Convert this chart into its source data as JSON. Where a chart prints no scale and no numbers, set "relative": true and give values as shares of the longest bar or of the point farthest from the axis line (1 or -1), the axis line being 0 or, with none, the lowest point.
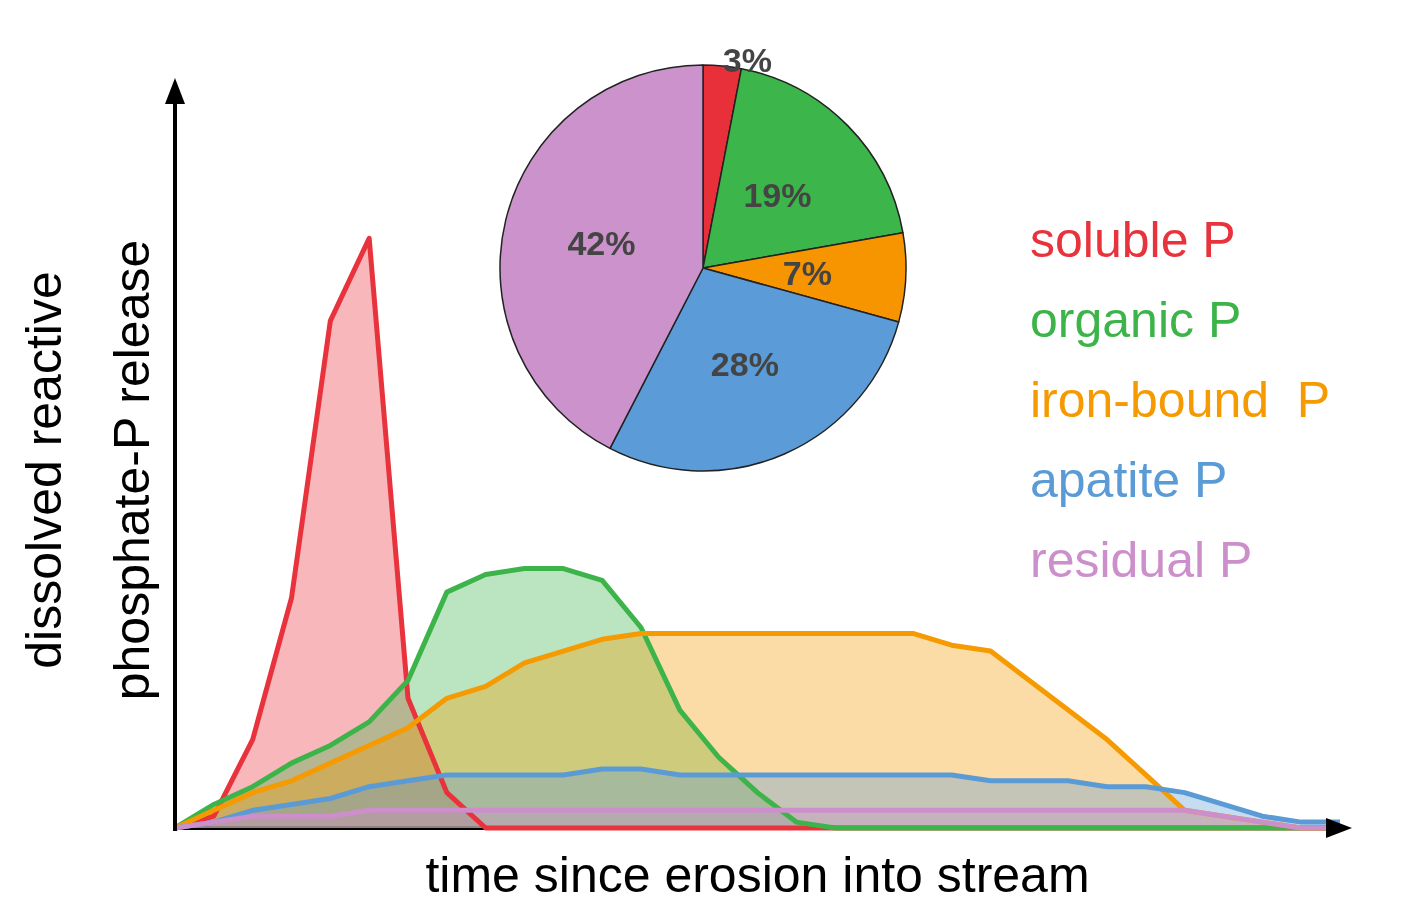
{
  "chart_data": [
    {
      "type": "area",
      "relative": true,
      "xlabel": "time since erosion into stream",
      "ylabel": "dissolved reactive\nphosphate-P release",
      "legend": "right",
      "grid": false,
      "categories": [
        null,
        null,
        null,
        null,
        null,
        null,
        null,
        null,
        null,
        null,
        null,
        null,
        null,
        null,
        null,
        null,
        null,
        null,
        null,
        null,
        null,
        null,
        null,
        null,
        null,
        null,
        null,
        null,
        null,
        null,
        null
      ],
      "series": [
        {
          "name": "soluble P",
          "color": "#e8323c",
          "values": [
            0,
            0.02,
            0.15,
            0.39,
            0.86,
            1,
            0.22,
            0.06,
            0,
            0,
            0,
            0,
            0,
            0,
            0,
            0,
            0,
            0,
            0,
            0,
            0,
            0,
            0,
            0,
            0,
            0,
            0,
            0,
            0,
            0,
            0
          ]
        },
        {
          "name": "organic P",
          "color": "#3cb44a",
          "values": [
            0,
            0.04,
            0.07,
            0.11,
            0.14,
            0.18,
            0.25,
            0.4,
            0.43,
            0.44,
            0.44,
            0.42,
            0.34,
            0.2,
            0.12,
            0.06,
            0.01,
            0,
            0,
            0,
            0,
            0,
            0,
            0,
            0,
            0,
            0,
            0,
            0,
            0,
            0
          ]
        },
        {
          "name": "iron-bound  P",
          "color": "#f59a00",
          "values": [
            0,
            0.03,
            0.06,
            0.08,
            0.11,
            0.14,
            0.17,
            0.22,
            0.24,
            0.28,
            0.3,
            0.32,
            0.33,
            0.33,
            0.33,
            0.33,
            0.33,
            0.33,
            0.33,
            0.33,
            0.31,
            0.3,
            0.25,
            0.2,
            0.15,
            0.09,
            0.03,
            0.02,
            0.01,
            0,
            0
          ]
        },
        {
          "name": "apatite P",
          "color": "#5b9bd5",
          "values": [
            0,
            0.01,
            0.03,
            0.04,
            0.05,
            0.07,
            0.08,
            0.09,
            0.09,
            0.09,
            0.09,
            0.1,
            0.1,
            0.09,
            0.09,
            0.09,
            0.09,
            0.09,
            0.09,
            0.09,
            0.09,
            0.08,
            0.08,
            0.08,
            0.07,
            0.07,
            0.06,
            0.04,
            0.02,
            0.01,
            0.01
          ]
        },
        {
          "name": "residual P",
          "color": "#cc8fcc",
          "values": [
            0,
            0.01,
            0.02,
            0.02,
            0.02,
            0.03,
            0.03,
            0.03,
            0.03,
            0.03,
            0.03,
            0.03,
            0.03,
            0.03,
            0.03,
            0.03,
            0.03,
            0.03,
            0.03,
            0.03,
            0.03,
            0.03,
            0.03,
            0.03,
            0.03,
            0.03,
            0.03,
            0.02,
            0.01,
            0,
            0
          ]
        }
      ]
    },
    {
      "type": "pie",
      "categories": [
        null,
        null,
        null,
        null,
        null
      ],
      "values": [
        3,
        19,
        7,
        28,
        42
      ],
      "colors": [
        "#e8303a",
        "#3cb54a",
        "#f79500",
        "#5b9bd8",
        "#cc92cc"
      ],
      "value_labels": [
        "3%",
        "19%",
        "7%",
        "28%",
        "42%"
      ]
    }
  ]
}
